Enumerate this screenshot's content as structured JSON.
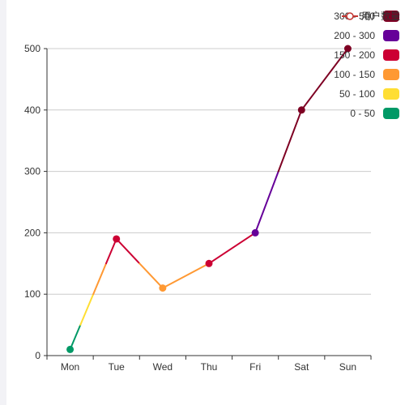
{
  "chart_data": {
    "type": "line",
    "categories": [
      "Mon",
      "Tue",
      "Wed",
      "Thu",
      "Fri",
      "Sat",
      "Sun"
    ],
    "series": [
      {
        "name": "用户数量",
        "values": [
          10,
          190,
          110,
          150,
          200,
          400,
          500
        ]
      }
    ],
    "ylim": [
      0,
      500
    ],
    "yticks": [
      0,
      100,
      200,
      300,
      400,
      500
    ],
    "grid": true,
    "legend_position": "top-right",
    "visual_map": {
      "pieces": [
        {
          "label": "300 - 500",
          "min": 300,
          "max": 500,
          "color": "#7e0023"
        },
        {
          "label": "200 - 300",
          "min": 200,
          "max": 300,
          "color": "#660099"
        },
        {
          "label": "150 - 200",
          "min": 150,
          "max": 200,
          "color": "#cc0033"
        },
        {
          "label": "100 - 150",
          "min": 100,
          "max": 150,
          "color": "#ff9933"
        },
        {
          "label": "50 - 100",
          "min": 50,
          "max": 100,
          "color": "#ffde33"
        },
        {
          "label": "0 - 50",
          "min": 0,
          "max": 50,
          "color": "#096"
        }
      ]
    }
  }
}
